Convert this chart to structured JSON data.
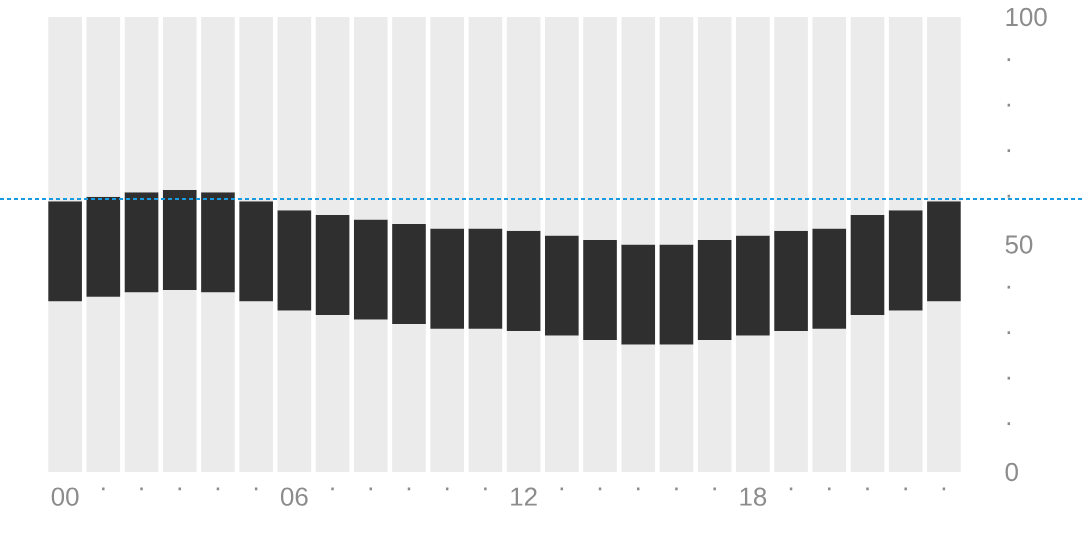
{
  "chart_data": {
    "type": "bar",
    "categories": [
      "00",
      "·",
      "·",
      "·",
      "·",
      "·",
      "06",
      "·",
      "·",
      "·",
      "·",
      "·",
      "12",
      "·",
      "·",
      "·",
      "·",
      "·",
      "18",
      "·",
      "·",
      "·",
      "·",
      "·"
    ],
    "series": [
      {
        "color": "#ebebeb",
        "values": [
          37.5,
          38.5,
          39.5,
          40,
          39.5,
          37.5,
          35.5,
          34.5,
          33.5,
          32.5,
          31.5,
          31.5,
          31,
          30,
          29,
          28,
          28,
          29,
          30,
          31,
          31.5,
          34.5,
          35.5,
          37.5
        ]
      },
      {
        "color": "#2f2f2f",
        "values": [
          22,
          22,
          22,
          22,
          22,
          22,
          22,
          22,
          22,
          22,
          22,
          22,
          22,
          22,
          22,
          22,
          22,
          22,
          22,
          22,
          22,
          22,
          22,
          22
        ]
      },
      {
        "color": "#ebebeb",
        "values": [
          40.5,
          39.5,
          38.5,
          38,
          38.5,
          40.5,
          42.5,
          43.5,
          44.5,
          45.5,
          46.5,
          46.5,
          47,
          48,
          49,
          50,
          50,
          49,
          48,
          47,
          46.5,
          43.5,
          42.5,
          40.5
        ]
      }
    ],
    "stacked": true,
    "ylim": [
      0,
      100
    ],
    "yticks": [
      0,
      {
        "value": 10,
        "label": "·"
      },
      {
        "value": 20,
        "label": "·"
      },
      {
        "value": 30,
        "label": "·"
      },
      {
        "value": 40,
        "label": "·"
      },
      50,
      {
        "value": 60,
        "label": "·"
      },
      {
        "value": 70,
        "label": "·"
      },
      {
        "value": 80,
        "label": "·"
      },
      {
        "value": 90,
        "label": "·"
      },
      100
    ],
    "ref_lines": [
      {
        "axis": "y",
        "value": 60,
        "color": "#1a9ae0",
        "line_style": "dashed"
      }
    ]
  }
}
